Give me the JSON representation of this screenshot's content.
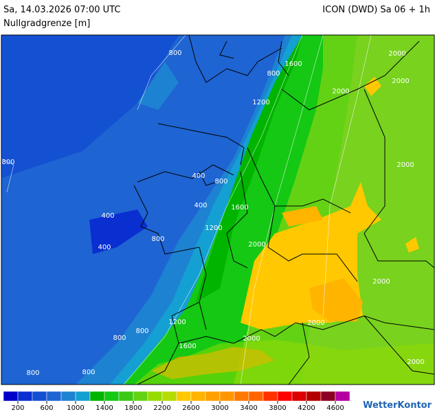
{
  "header": {
    "timestamp": "Sa, 14.03.2026 07:00 UTC",
    "model": "ICON (DWD) Sa 06 + 1h",
    "parameter": "Nullgradgrenze [m]"
  },
  "contour_labels": [
    800,
    800,
    1600,
    2000,
    2000,
    2000,
    1200,
    800,
    2000,
    400,
    800,
    400,
    1600,
    400,
    1200,
    800,
    2000,
    400,
    2000,
    1200,
    2000,
    800,
    800,
    2000,
    1600,
    800,
    800,
    2000
  ],
  "legend": {
    "colors": [
      "#0000c8",
      "#0a2fd0",
      "#1450d2",
      "#1e64d2",
      "#1e82d2",
      "#14a0d2",
      "#00b400",
      "#14c814",
      "#3cc814",
      "#64d214",
      "#96dc00",
      "#b4dc00",
      "#ffc800",
      "#ffb400",
      "#ffa000",
      "#ff9600",
      "#ff7800",
      "#ff6400",
      "#ff3200",
      "#ff0000",
      "#dc0000",
      "#b40000",
      "#8c0028",
      "#b400a0"
    ],
    "ticks": [
      200,
      600,
      1000,
      1400,
      1800,
      2200,
      2600,
      3000,
      3400,
      3800,
      4200,
      4600
    ]
  },
  "logo": "WetterKontor"
}
